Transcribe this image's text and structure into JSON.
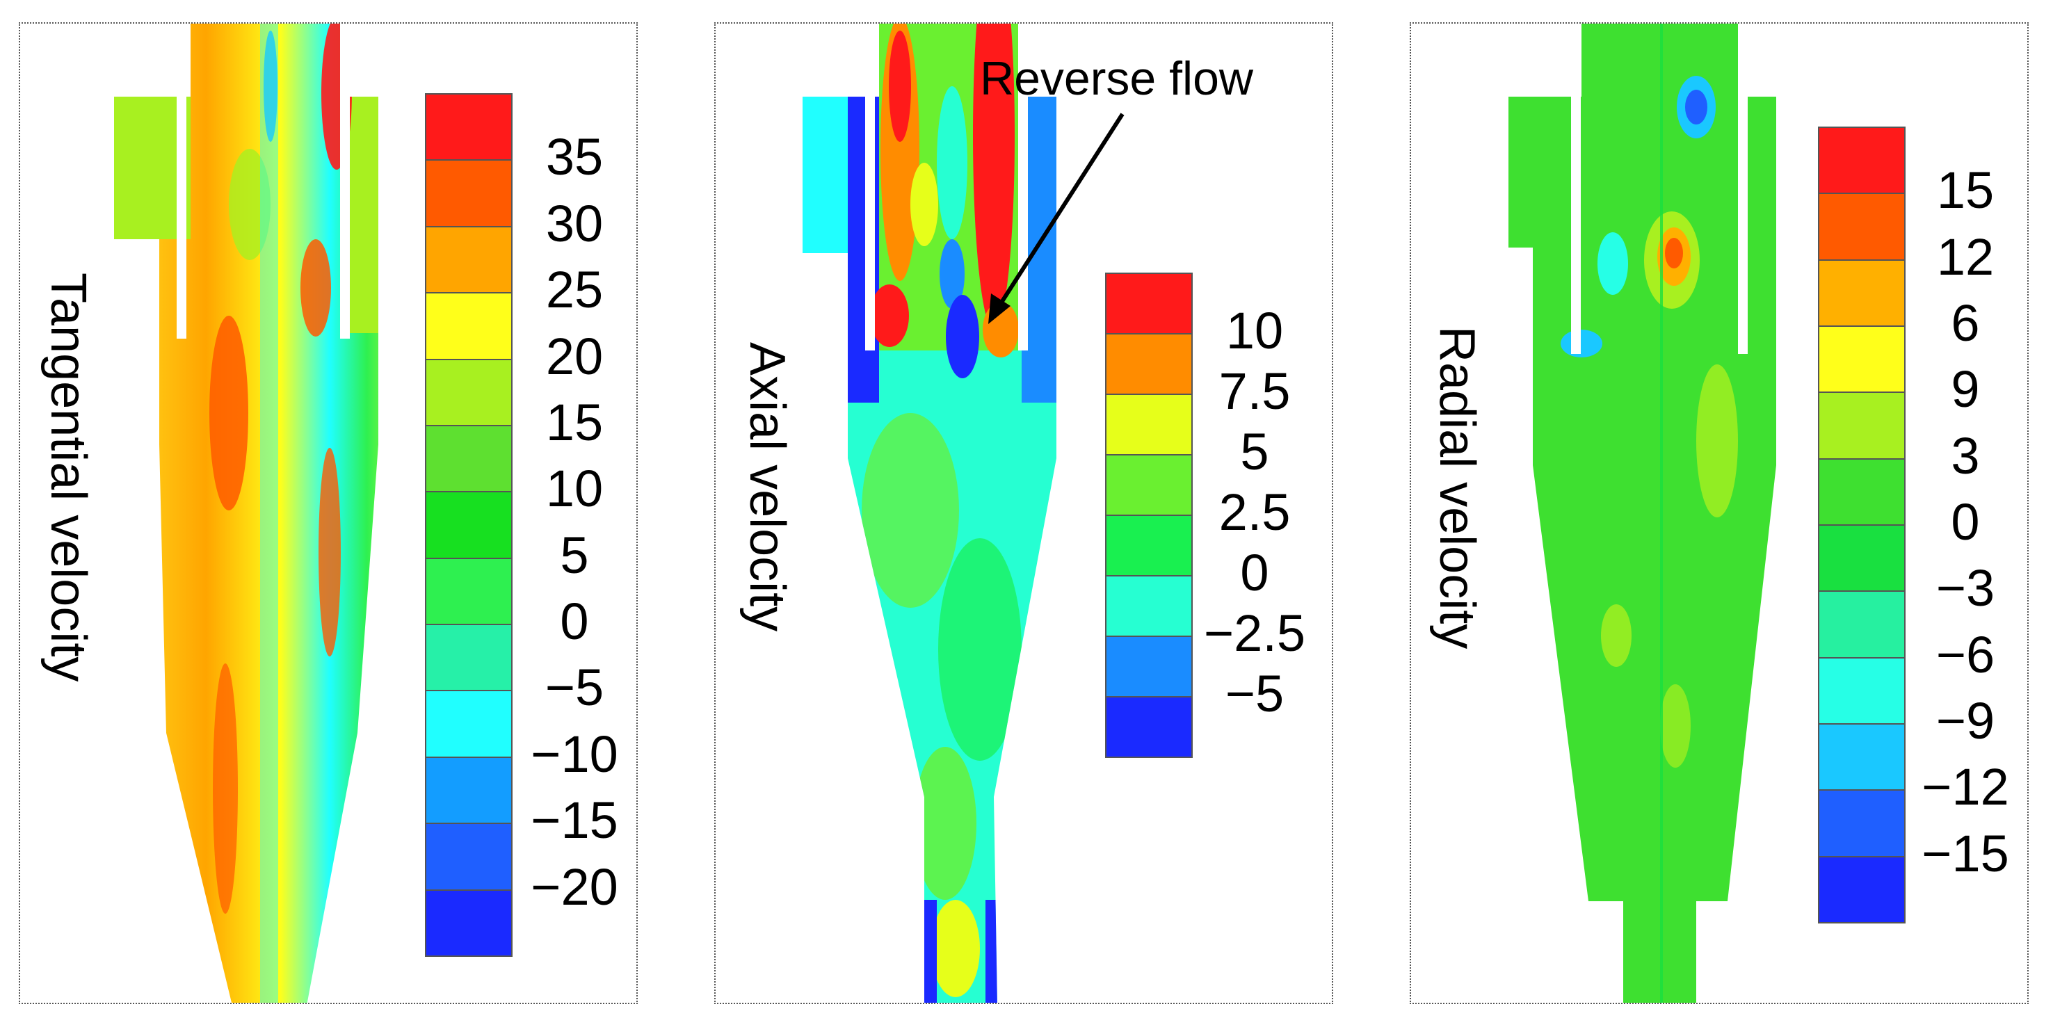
{
  "panels": [
    {
      "label": "Tangential velocity",
      "legend_values": [
        "35",
        "30",
        "25",
        "20",
        "15",
        "10",
        "5",
        "0",
        "−5",
        "−10",
        "−15",
        "−20"
      ],
      "legend_colors": [
        "#ff1a1a",
        "#ff5a00",
        "#ffa500",
        "#ffff1a",
        "#a8f020",
        "#5ee030",
        "#17e020",
        "#2ef050",
        "#26f0a8",
        "#20ffff",
        "#139dff",
        "#1f5fff",
        "#1a2aff"
      ]
    },
    {
      "label": "Axial velocity",
      "annotation": "Reverse flow",
      "legend_values": [
        "10",
        "7.5",
        "5",
        "2.5",
        "0",
        "−2.5",
        "−5"
      ],
      "legend_colors": [
        "#ff1a1a",
        "#ff8c00",
        "#e6ff1a",
        "#6af030",
        "#19f050",
        "#26ffd2",
        "#1a8cff",
        "#1a2aff"
      ]
    },
    {
      "label": "Radial velocity",
      "legend_values": [
        "15",
        "12",
        "6",
        "9",
        "3",
        "0",
        "−3",
        "−6",
        "−9",
        "−12",
        "−15"
      ],
      "legend_colors": [
        "#ff1a1a",
        "#ff5a00",
        "#ffb000",
        "#ffff1a",
        "#a8f020",
        "#3ee030",
        "#19e040",
        "#26f0a0",
        "#26ffe6",
        "#1ac8ff",
        "#1f5fff",
        "#1a2aff"
      ]
    }
  ]
}
